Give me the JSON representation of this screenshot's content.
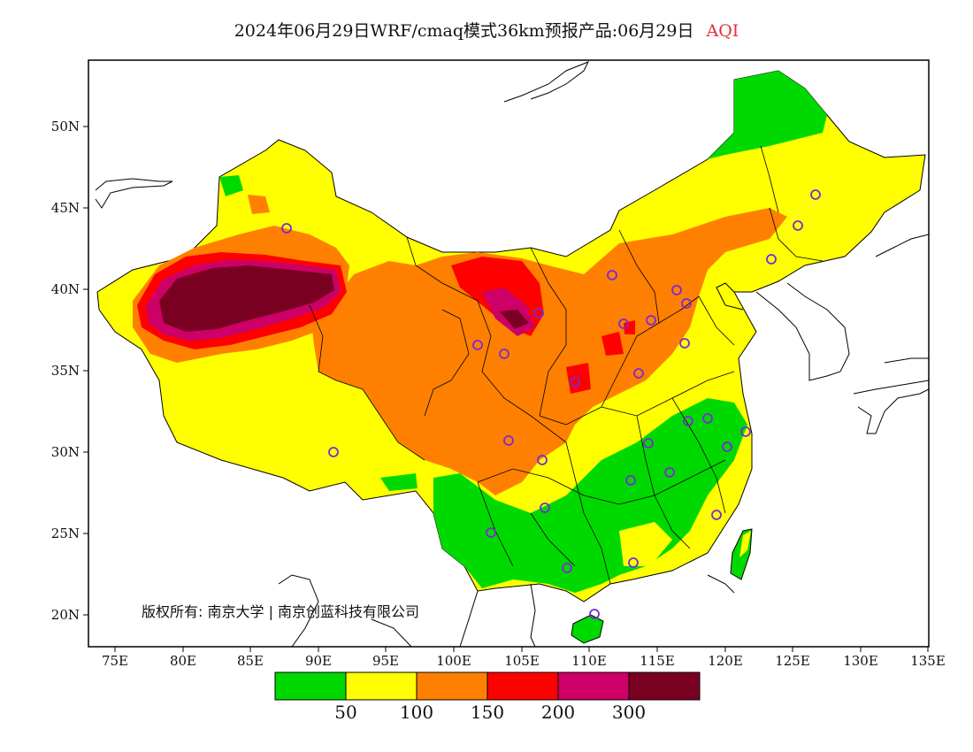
{
  "title": {
    "main": "2024年06月29日WRF/cmaq模式36km预报产品:06月29日",
    "variable": "AQI"
  },
  "axes": {
    "lon_labels": [
      "75E",
      "80E",
      "85E",
      "90E",
      "95E",
      "100E",
      "105E",
      "110E",
      "115E",
      "120E",
      "125E",
      "130E",
      "135E"
    ],
    "lat_labels": [
      "50N",
      "45N",
      "40N",
      "35N",
      "30N",
      "25N",
      "20N"
    ]
  },
  "copyright": "版权所有: 南京大学 | 南京创蓝科技有限公司",
  "legend": {
    "colors": [
      "#00d900",
      "#ffff00",
      "#ff8000",
      "#ff0000",
      "#cc0066",
      "#7a0022"
    ],
    "labels": [
      "50",
      "100",
      "150",
      "200",
      "300"
    ]
  },
  "colors": {
    "good": "#00d900",
    "moderate": "#ffff00",
    "unhealthy_sensitive": "#ff8000",
    "unhealthy": "#ff0000",
    "very_unhealthy": "#cc0066",
    "hazardous": "#7a0022",
    "station_marker": "#7a2ad6"
  }
}
